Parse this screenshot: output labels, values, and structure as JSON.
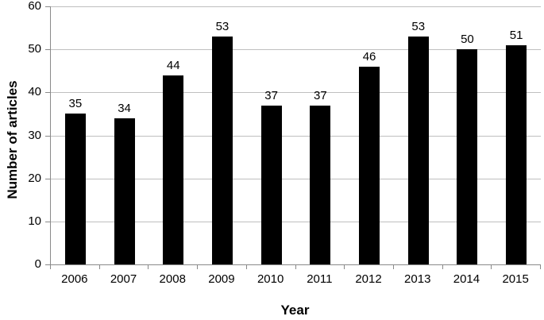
{
  "chart_data": {
    "type": "bar",
    "title": "",
    "categories": [
      "2006",
      "2007",
      "2008",
      "2009",
      "2010",
      "2011",
      "2012",
      "2013",
      "2014",
      "2015"
    ],
    "values": [
      35,
      34,
      44,
      53,
      37,
      37,
      46,
      53,
      50,
      51
    ],
    "xlabel": "Year",
    "ylabel": "Number of articles",
    "ylim": [
      0,
      60
    ],
    "ytick_step": 10,
    "ytick_labels": [
      "0",
      "10",
      "20",
      "30",
      "40",
      "50",
      "60"
    ],
    "grid": true,
    "legend": "none",
    "bar_color": "#000000",
    "gridline_color": "#bfbfbf",
    "axis_color": "#898989",
    "text_color": "#000000"
  }
}
